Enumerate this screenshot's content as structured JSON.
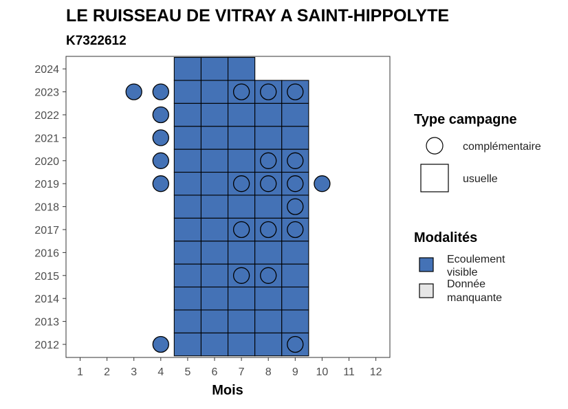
{
  "chart_data": {
    "type": "heatmap",
    "title": "LE RUISSEAU DE VITRAY A SAINT-HIPPOLYTE",
    "subtitle": "K7322612",
    "xlabel": "Mois",
    "ylabel": "",
    "x_ticks": [
      1,
      2,
      3,
      4,
      5,
      6,
      7,
      8,
      9,
      10,
      11,
      12
    ],
    "y_ticks": [
      2012,
      2013,
      2014,
      2015,
      2016,
      2017,
      2018,
      2019,
      2020,
      2021,
      2022,
      2023,
      2024
    ],
    "grid": false,
    "colors": {
      "ecoulement_visible": "#4472b6",
      "donnee_manquante": "#e6e6e6",
      "border": "#000000"
    },
    "usuelle": [
      {
        "year": 2012,
        "months": [
          5,
          6,
          7,
          8,
          9
        ]
      },
      {
        "year": 2013,
        "months": [
          5,
          6,
          7,
          8,
          9
        ]
      },
      {
        "year": 2014,
        "months": [
          5,
          6,
          7,
          8,
          9
        ]
      },
      {
        "year": 2015,
        "months": [
          5,
          6,
          7,
          8,
          9
        ]
      },
      {
        "year": 2016,
        "months": [
          5,
          6,
          7,
          8,
          9
        ]
      },
      {
        "year": 2017,
        "months": [
          5,
          6,
          7,
          8,
          9
        ]
      },
      {
        "year": 2018,
        "months": [
          5,
          6,
          7,
          8,
          9
        ]
      },
      {
        "year": 2019,
        "months": [
          5,
          6,
          7,
          8,
          9
        ]
      },
      {
        "year": 2020,
        "months": [
          5,
          6,
          7,
          8,
          9
        ]
      },
      {
        "year": 2021,
        "months": [
          5,
          6,
          7,
          8,
          9
        ]
      },
      {
        "year": 2022,
        "months": [
          5,
          6,
          7,
          8,
          9
        ]
      },
      {
        "year": 2023,
        "months": [
          5,
          6,
          7,
          8,
          9
        ]
      },
      {
        "year": 2024,
        "months": [
          5,
          6,
          7
        ]
      }
    ],
    "complementaire": [
      {
        "year": 2012,
        "months": [
          4,
          9
        ]
      },
      {
        "year": 2015,
        "months": [
          7,
          8
        ]
      },
      {
        "year": 2017,
        "months": [
          7,
          8,
          9
        ]
      },
      {
        "year": 2018,
        "months": [
          9
        ]
      },
      {
        "year": 2019,
        "months": [
          4,
          7,
          8,
          9,
          10
        ]
      },
      {
        "year": 2020,
        "months": [
          4,
          8,
          9
        ]
      },
      {
        "year": 2021,
        "months": [
          4
        ]
      },
      {
        "year": 2022,
        "months": [
          4
        ]
      },
      {
        "year": 2023,
        "months": [
          3,
          4,
          7,
          8,
          9
        ]
      }
    ],
    "legend": {
      "placement": "right",
      "type_title": "Type campagne",
      "type_items": [
        "complémentaire",
        "usuelle"
      ],
      "mod_title": "Modalités",
      "mod_items": [
        {
          "line1": "Ecoulement",
          "line2": "visible",
          "color": "#4472b6"
        },
        {
          "line1": "Donnée",
          "line2": "manquante",
          "color": "#e6e6e6"
        }
      ]
    }
  }
}
